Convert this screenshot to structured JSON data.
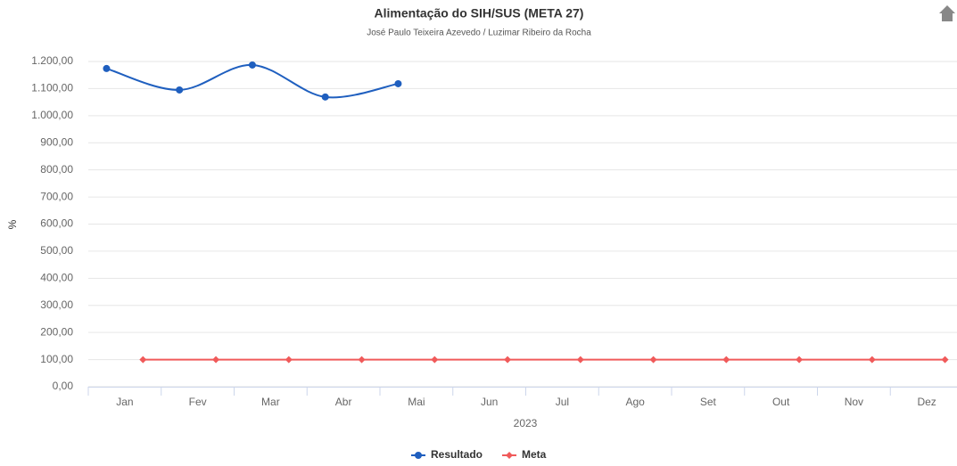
{
  "chart_data": {
    "type": "line",
    "title": "Alimentação do SIH/SUS (META 27)",
    "subtitle": "José Paulo Teixeira Azevedo / Luzimar Ribeiro da Rocha",
    "y_label": "%",
    "x_label": "2023",
    "categories": [
      "Jan",
      "Fev",
      "Mar",
      "Abr",
      "Mai",
      "Jun",
      "Jul",
      "Ago",
      "Set",
      "Out",
      "Nov",
      "Dez"
    ],
    "series": [
      {
        "name": "Resultado",
        "color": "#1f5fbf",
        "values": [
          1174,
          1095,
          1187,
          1069,
          1118,
          null,
          null,
          null,
          null,
          null,
          null,
          null
        ]
      },
      {
        "name": "Meta",
        "color": "#f05a5a",
        "values": [
          100,
          100,
          100,
          100,
          100,
          100,
          100,
          100,
          100,
          100,
          100,
          100
        ]
      }
    ],
    "ylim": [
      0,
      1200
    ],
    "yticks": [
      {
        "value": 0,
        "label": "0,00"
      },
      {
        "value": 100,
        "label": "100,00"
      },
      {
        "value": 200,
        "label": "200,00"
      },
      {
        "value": 300,
        "label": "300,00"
      },
      {
        "value": 400,
        "label": "400,00"
      },
      {
        "value": 500,
        "label": "500,00"
      },
      {
        "value": 600,
        "label": "600,00"
      },
      {
        "value": 700,
        "label": "700,00"
      },
      {
        "value": 800,
        "label": "800,00"
      },
      {
        "value": 900,
        "label": "900,00"
      },
      {
        "value": 1000,
        "label": "1.000,00"
      },
      {
        "value": 1100,
        "label": "1.100,00"
      },
      {
        "value": 1200,
        "label": "1.200,00"
      }
    ],
    "grid": true,
    "legend": "bottom"
  }
}
